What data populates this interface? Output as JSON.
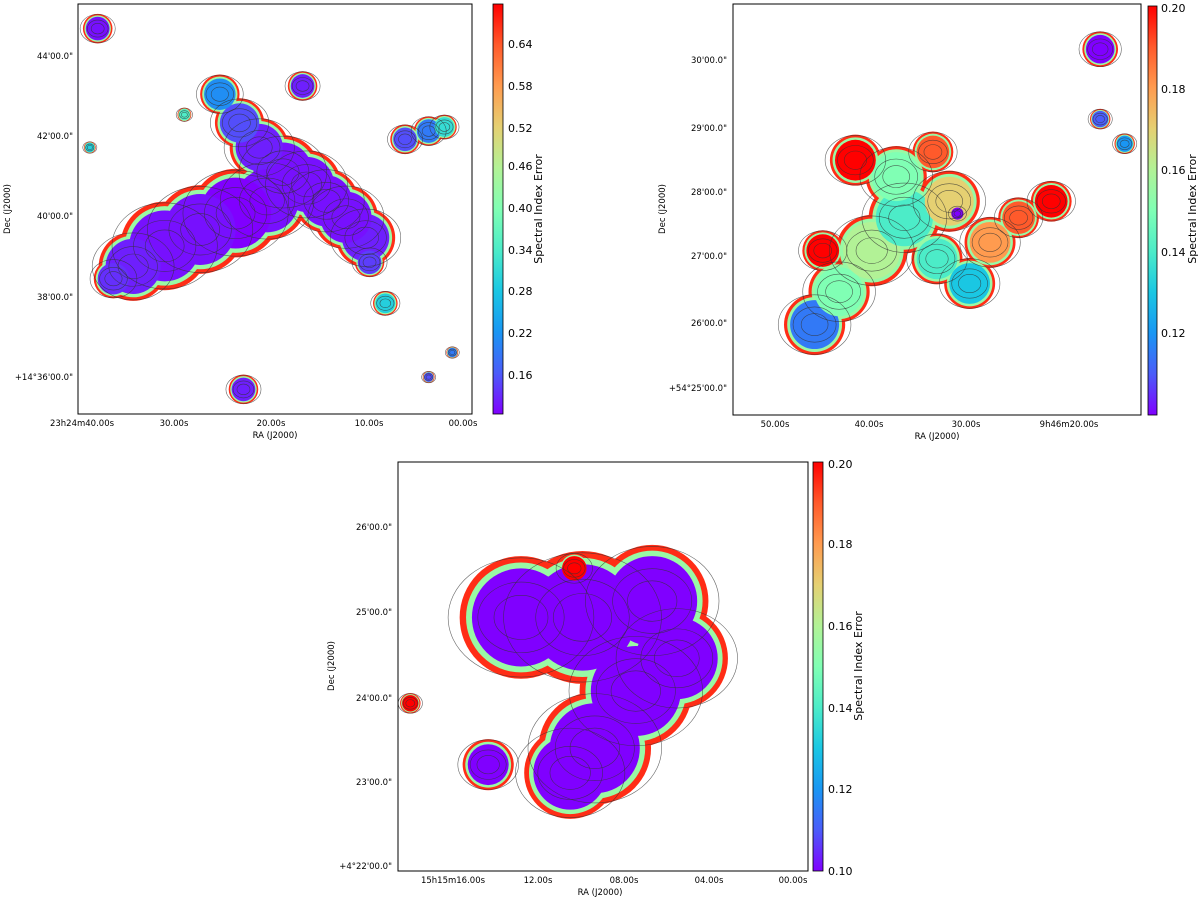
{
  "colors": {
    "background": "#ffffff",
    "axes": "#000000",
    "contour": "#333333",
    "colormap_rainbow": [
      "#8000ff",
      "#4b5cf9",
      "#1996f3",
      "#1ac7e3",
      "#4cecc8",
      "#80ffb4",
      "#b2f296",
      "#e5d072",
      "#ff9b4f",
      "#ff5a2b",
      "#ff0000"
    ]
  },
  "chart_data": [
    {
      "id": "panel-1",
      "type": "heatmap",
      "title": "",
      "xlabel": "RA (J2000)",
      "ylabel": "Dec (J2000)",
      "x_ticks": [
        "23h24m40.00s",
        "30.00s",
        "20.00s",
        "10.00s",
        "00.00s"
      ],
      "y_ticks": [
        "+14°36'00.0\"",
        "38'00.0\"",
        "40'00.0\"",
        "42'00.0\"",
        "44'00.0\""
      ],
      "colorbar": {
        "label": "Spectral Index Error",
        "ticks": [
          "0.16",
          "0.22",
          "0.28",
          "0.34",
          "0.40",
          "0.46",
          "0.52",
          "0.58",
          "0.64"
        ],
        "range": [
          0.11,
          0.7
        ],
        "cmap": "rainbow"
      },
      "contours": true,
      "blobs": [
        {
          "rx": 0.73,
          "ry": 0.57,
          "r": 0.06,
          "v": 0.13
        },
        {
          "rx": 0.68,
          "ry": 0.52,
          "r": 0.065,
          "v": 0.12
        },
        {
          "rx": 0.63,
          "ry": 0.48,
          "r": 0.065,
          "v": 0.12
        },
        {
          "rx": 0.58,
          "ry": 0.44,
          "r": 0.07,
          "v": 0.12
        },
        {
          "rx": 0.52,
          "ry": 0.41,
          "r": 0.075,
          "v": 0.12
        },
        {
          "rx": 0.46,
          "ry": 0.35,
          "r": 0.06,
          "v": 0.13
        },
        {
          "rx": 0.41,
          "ry": 0.29,
          "r": 0.05,
          "v": 0.16
        },
        {
          "rx": 0.36,
          "ry": 0.22,
          "r": 0.04,
          "v": 0.22
        },
        {
          "rx": 0.48,
          "ry": 0.48,
          "r": 0.08,
          "v": 0.12
        },
        {
          "rx": 0.4,
          "ry": 0.51,
          "r": 0.09,
          "v": 0.11
        },
        {
          "rx": 0.31,
          "ry": 0.55,
          "r": 0.09,
          "v": 0.12
        },
        {
          "rx": 0.22,
          "ry": 0.59,
          "r": 0.09,
          "v": 0.12
        },
        {
          "rx": 0.14,
          "ry": 0.64,
          "r": 0.07,
          "v": 0.13
        },
        {
          "rx": 0.09,
          "ry": 0.67,
          "r": 0.04,
          "v": 0.14
        },
        {
          "rx": 0.74,
          "ry": 0.63,
          "r": 0.03,
          "v": 0.15
        },
        {
          "rx": 0.83,
          "ry": 0.33,
          "r": 0.03,
          "v": 0.16
        },
        {
          "rx": 0.89,
          "ry": 0.31,
          "r": 0.03,
          "v": 0.2
        },
        {
          "rx": 0.93,
          "ry": 0.3,
          "r": 0.025,
          "v": 0.32
        },
        {
          "rx": 0.05,
          "ry": 0.06,
          "r": 0.03,
          "v": 0.12
        },
        {
          "rx": 0.57,
          "ry": 0.2,
          "r": 0.03,
          "v": 0.13
        },
        {
          "rx": 0.42,
          "ry": 0.94,
          "r": 0.03,
          "v": 0.13
        },
        {
          "rx": 0.89,
          "ry": 0.91,
          "r": 0.012,
          "v": 0.16
        },
        {
          "rx": 0.95,
          "ry": 0.85,
          "r": 0.012,
          "v": 0.2
        },
        {
          "rx": 0.27,
          "ry": 0.27,
          "r": 0.014,
          "v": 0.35
        },
        {
          "rx": 0.03,
          "ry": 0.35,
          "r": 0.012,
          "v": 0.3
        },
        {
          "rx": 0.78,
          "ry": 0.73,
          "r": 0.025,
          "v": 0.3
        }
      ]
    },
    {
      "id": "panel-2",
      "type": "heatmap",
      "title": "",
      "xlabel": "RA (J2000)",
      "ylabel": "Dec (J2000)",
      "x_ticks": [
        "50.00s",
        "40.00s",
        "30.00s",
        "9h46m20.00s"
      ],
      "y_ticks": [
        "+54°25'00.0\"",
        "26'00.0\"",
        "27'00.0\"",
        "28'00.0\"",
        "29'00.0\"",
        "30'00.0\""
      ],
      "colorbar": {
        "label": "Spectral Index Error",
        "ticks": [
          "0.12",
          "0.14",
          "0.16",
          "0.18",
          "0.20"
        ],
        "range": [
          0.1,
          0.2
        ],
        "cmap": "rainbow"
      },
      "contours": true,
      "blobs": [
        {
          "rx": 0.2,
          "ry": 0.78,
          "r": 0.06,
          "v": 0.115
        },
        {
          "rx": 0.26,
          "ry": 0.7,
          "r": 0.06,
          "v": 0.15
        },
        {
          "rx": 0.34,
          "ry": 0.6,
          "r": 0.07,
          "v": 0.16
        },
        {
          "rx": 0.42,
          "ry": 0.52,
          "r": 0.07,
          "v": 0.14
        },
        {
          "rx": 0.4,
          "ry": 0.42,
          "r": 0.06,
          "v": 0.15
        },
        {
          "rx": 0.5,
          "ry": 0.62,
          "r": 0.05,
          "v": 0.14
        },
        {
          "rx": 0.58,
          "ry": 0.68,
          "r": 0.05,
          "v": 0.13
        },
        {
          "rx": 0.53,
          "ry": 0.48,
          "r": 0.06,
          "v": 0.17
        },
        {
          "rx": 0.63,
          "ry": 0.58,
          "r": 0.05,
          "v": 0.18
        },
        {
          "rx": 0.7,
          "ry": 0.52,
          "r": 0.04,
          "v": 0.19
        },
        {
          "rx": 0.78,
          "ry": 0.48,
          "r": 0.04,
          "v": 0.2
        },
        {
          "rx": 0.3,
          "ry": 0.38,
          "r": 0.05,
          "v": 0.2
        },
        {
          "rx": 0.22,
          "ry": 0.6,
          "r": 0.04,
          "v": 0.2
        },
        {
          "rx": 0.49,
          "ry": 0.36,
          "r": 0.04,
          "v": 0.19
        },
        {
          "rx": 0.9,
          "ry": 0.11,
          "r": 0.035,
          "v": 0.1
        },
        {
          "rx": 0.9,
          "ry": 0.28,
          "r": 0.02,
          "v": 0.11
        },
        {
          "rx": 0.96,
          "ry": 0.34,
          "r": 0.02,
          "v": 0.12
        },
        {
          "rx": 0.55,
          "ry": 0.51,
          "r": 0.015,
          "v": 0.1
        }
      ]
    },
    {
      "id": "panel-3",
      "type": "heatmap",
      "title": "",
      "xlabel": "RA (J2000)",
      "ylabel": "Dec (J2000)",
      "x_ticks": [
        "15h15m16.00s",
        "12.00s",
        "08.00s",
        "04.00s",
        "00.00s"
      ],
      "y_ticks": [
        "+4°22'00.0\"",
        "23'00.0\"",
        "24'00.0\"",
        "25'00.0\"",
        "26'00.0\""
      ],
      "colorbar": {
        "label": "Spectral Index Error",
        "ticks": [
          "0.10",
          "0.12",
          "0.14",
          "0.16",
          "0.18",
          "0.20"
        ],
        "range": [
          0.1,
          0.2
        ],
        "cmap": "rainbow"
      },
      "contours": true,
      "blobs": [
        {
          "rx": 0.3,
          "ry": 0.38,
          "r": 0.12,
          "v": 0.1
        },
        {
          "rx": 0.45,
          "ry": 0.38,
          "r": 0.13,
          "v": 0.1
        },
        {
          "rx": 0.62,
          "ry": 0.34,
          "r": 0.11,
          "v": 0.1
        },
        {
          "rx": 0.68,
          "ry": 0.48,
          "r": 0.1,
          "v": 0.1
        },
        {
          "rx": 0.58,
          "ry": 0.56,
          "r": 0.11,
          "v": 0.1
        },
        {
          "rx": 0.48,
          "ry": 0.7,
          "r": 0.11,
          "v": 0.1
        },
        {
          "rx": 0.42,
          "ry": 0.76,
          "r": 0.09,
          "v": 0.1
        },
        {
          "rx": 0.22,
          "ry": 0.74,
          "r": 0.05,
          "v": 0.1
        },
        {
          "rx": 0.03,
          "ry": 0.59,
          "r": 0.02,
          "v": 0.2
        },
        {
          "rx": 0.43,
          "ry": 0.26,
          "r": 0.03,
          "v": 0.2
        }
      ]
    }
  ]
}
